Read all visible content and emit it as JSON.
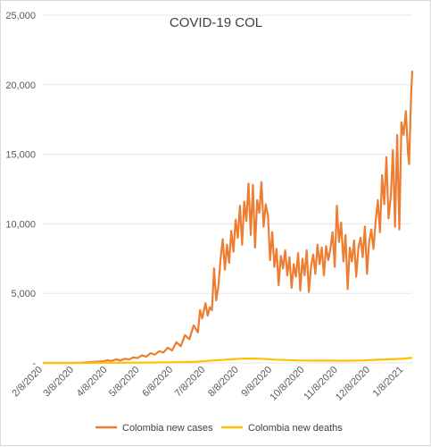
{
  "chart_data": {
    "type": "line",
    "title": "COVID-19 COL",
    "xlabel": "",
    "ylabel": "",
    "x_tick_labels": [
      "2/8/2020",
      "3/8/2020",
      "4/8/2020",
      "5/8/2020",
      "6/8/2020",
      "7/8/2020",
      "8/8/2020",
      "9/8/2020",
      "10/8/2020",
      "11/8/2020",
      "12/8/2020",
      "1/8/2021"
    ],
    "y_tick_labels": [
      "-",
      "5,000",
      "10,000",
      "15,000",
      "20,000",
      "25,000"
    ],
    "ylim": [
      0,
      25000
    ],
    "xlim": [
      "2020-02-08",
      "2021-01-16"
    ],
    "grid": "horizontal",
    "legend_position": "bottom",
    "series": [
      {
        "name": "Colombia new cases",
        "color": "#ED7D31",
        "points": [
          [
            "2020-02-08",
            0
          ],
          [
            "2020-03-08",
            0
          ],
          [
            "2020-03-15",
            20
          ],
          [
            "2020-03-22",
            60
          ],
          [
            "2020-03-29",
            90
          ],
          [
            "2020-04-05",
            120
          ],
          [
            "2020-04-08",
            200
          ],
          [
            "2020-04-12",
            150
          ],
          [
            "2020-04-16",
            260
          ],
          [
            "2020-04-20",
            180
          ],
          [
            "2020-04-24",
            300
          ],
          [
            "2020-04-28",
            250
          ],
          [
            "2020-05-02",
            400
          ],
          [
            "2020-05-06",
            350
          ],
          [
            "2020-05-10",
            550
          ],
          [
            "2020-05-14",
            450
          ],
          [
            "2020-05-18",
            700
          ],
          [
            "2020-05-22",
            600
          ],
          [
            "2020-05-26",
            850
          ],
          [
            "2020-05-30",
            750
          ],
          [
            "2020-06-03",
            1100
          ],
          [
            "2020-06-07",
            900
          ],
          [
            "2020-06-11",
            1500
          ],
          [
            "2020-06-15",
            1200
          ],
          [
            "2020-06-19",
            2000
          ],
          [
            "2020-06-23",
            1700
          ],
          [
            "2020-06-27",
            2700
          ],
          [
            "2020-07-01",
            2200
          ],
          [
            "2020-07-03",
            3800
          ],
          [
            "2020-07-05",
            3200
          ],
          [
            "2020-07-08",
            4300
          ],
          [
            "2020-07-10",
            3400
          ],
          [
            "2020-07-12",
            4000
          ],
          [
            "2020-07-14",
            3800
          ],
          [
            "2020-07-16",
            6800
          ],
          [
            "2020-07-18",
            4500
          ],
          [
            "2020-07-20",
            5500
          ],
          [
            "2020-07-22",
            7500
          ],
          [
            "2020-07-24",
            8900
          ],
          [
            "2020-07-26",
            6700
          ],
          [
            "2020-07-28",
            8500
          ],
          [
            "2020-07-30",
            7200
          ],
          [
            "2020-08-01",
            9500
          ],
          [
            "2020-08-03",
            8000
          ],
          [
            "2020-08-05",
            10300
          ],
          [
            "2020-08-07",
            9000
          ],
          [
            "2020-08-09",
            11300
          ],
          [
            "2020-08-11",
            8500
          ],
          [
            "2020-08-13",
            11600
          ],
          [
            "2020-08-15",
            10200
          ],
          [
            "2020-08-17",
            12900
          ],
          [
            "2020-08-19",
            9200
          ],
          [
            "2020-08-21",
            12800
          ],
          [
            "2020-08-23",
            8300
          ],
          [
            "2020-08-25",
            11700
          ],
          [
            "2020-08-27",
            10800
          ],
          [
            "2020-08-29",
            13000
          ],
          [
            "2020-08-31",
            9800
          ],
          [
            "2020-09-02",
            11400
          ],
          [
            "2020-09-04",
            10600
          ],
          [
            "2020-09-06",
            7400
          ],
          [
            "2020-09-08",
            9400
          ],
          [
            "2020-09-10",
            6900
          ],
          [
            "2020-09-12",
            8200
          ],
          [
            "2020-09-14",
            5600
          ],
          [
            "2020-09-16",
            7700
          ],
          [
            "2020-09-18",
            6800
          ],
          [
            "2020-09-20",
            8100
          ],
          [
            "2020-09-22",
            6300
          ],
          [
            "2020-09-24",
            7600
          ],
          [
            "2020-09-26",
            5400
          ],
          [
            "2020-09-28",
            7100
          ],
          [
            "2020-09-30",
            6200
          ],
          [
            "2020-10-02",
            7900
          ],
          [
            "2020-10-04",
            5200
          ],
          [
            "2020-10-06",
            7500
          ],
          [
            "2020-10-08",
            6300
          ],
          [
            "2020-10-10",
            8100
          ],
          [
            "2020-10-12",
            5100
          ],
          [
            "2020-10-14",
            6900
          ],
          [
            "2020-10-16",
            7800
          ],
          [
            "2020-10-18",
            6400
          ],
          [
            "2020-10-20",
            8500
          ],
          [
            "2020-10-22",
            7100
          ],
          [
            "2020-10-24",
            8300
          ],
          [
            "2020-10-26",
            6300
          ],
          [
            "2020-10-28",
            8400
          ],
          [
            "2020-10-30",
            7400
          ],
          [
            "2020-11-01",
            8200
          ],
          [
            "2020-11-03",
            9400
          ],
          [
            "2020-11-05",
            6900
          ],
          [
            "2020-11-07",
            11300
          ],
          [
            "2020-11-09",
            8700
          ],
          [
            "2020-11-11",
            10100
          ],
          [
            "2020-11-13",
            7300
          ],
          [
            "2020-11-15",
            9200
          ],
          [
            "2020-11-17",
            5300
          ],
          [
            "2020-11-19",
            8300
          ],
          [
            "2020-11-21",
            7300
          ],
          [
            "2020-11-23",
            8800
          ],
          [
            "2020-11-25",
            6200
          ],
          [
            "2020-11-27",
            8300
          ],
          [
            "2020-11-29",
            9000
          ],
          [
            "2020-12-01",
            7600
          ],
          [
            "2020-12-03",
            9800
          ],
          [
            "2020-12-05",
            6400
          ],
          [
            "2020-12-07",
            8700
          ],
          [
            "2020-12-09",
            9600
          ],
          [
            "2020-12-11",
            8200
          ],
          [
            "2020-12-13",
            10200
          ],
          [
            "2020-12-15",
            11700
          ],
          [
            "2020-12-17",
            9400
          ],
          [
            "2020-12-19",
            13500
          ],
          [
            "2020-12-21",
            11400
          ],
          [
            "2020-12-23",
            14800
          ],
          [
            "2020-12-25",
            10400
          ],
          [
            "2020-12-27",
            11900
          ],
          [
            "2020-12-29",
            15300
          ],
          [
            "2020-12-31",
            9800
          ],
          [
            "2021-01-02",
            16400
          ],
          [
            "2021-01-04",
            9600
          ],
          [
            "2021-01-06",
            17300
          ],
          [
            "2021-01-08",
            16400
          ],
          [
            "2021-01-10",
            18100
          ],
          [
            "2021-01-12",
            15100
          ],
          [
            "2021-01-13",
            14300
          ],
          [
            "2021-01-15",
            19400
          ],
          [
            "2021-01-16",
            21000
          ]
        ]
      },
      {
        "name": "Colombia new deaths",
        "color": "#FFC000",
        "points": [
          [
            "2020-02-08",
            0
          ],
          [
            "2020-03-15",
            0
          ],
          [
            "2020-04-01",
            10
          ],
          [
            "2020-05-01",
            20
          ],
          [
            "2020-05-20",
            35
          ],
          [
            "2020-06-10",
            50
          ],
          [
            "2020-06-30",
            90
          ],
          [
            "2020-07-15",
            180
          ],
          [
            "2020-08-01",
            260
          ],
          [
            "2020-08-10",
            310
          ],
          [
            "2020-08-20",
            320
          ],
          [
            "2020-08-30",
            300
          ],
          [
            "2020-09-10",
            240
          ],
          [
            "2020-09-20",
            210
          ],
          [
            "2020-10-01",
            180
          ],
          [
            "2020-10-15",
            170
          ],
          [
            "2020-11-01",
            170
          ],
          [
            "2020-11-15",
            160
          ],
          [
            "2020-12-01",
            180
          ],
          [
            "2020-12-15",
            230
          ],
          [
            "2021-01-01",
            280
          ],
          [
            "2021-01-10",
            320
          ],
          [
            "2021-01-16",
            380
          ]
        ]
      }
    ]
  }
}
